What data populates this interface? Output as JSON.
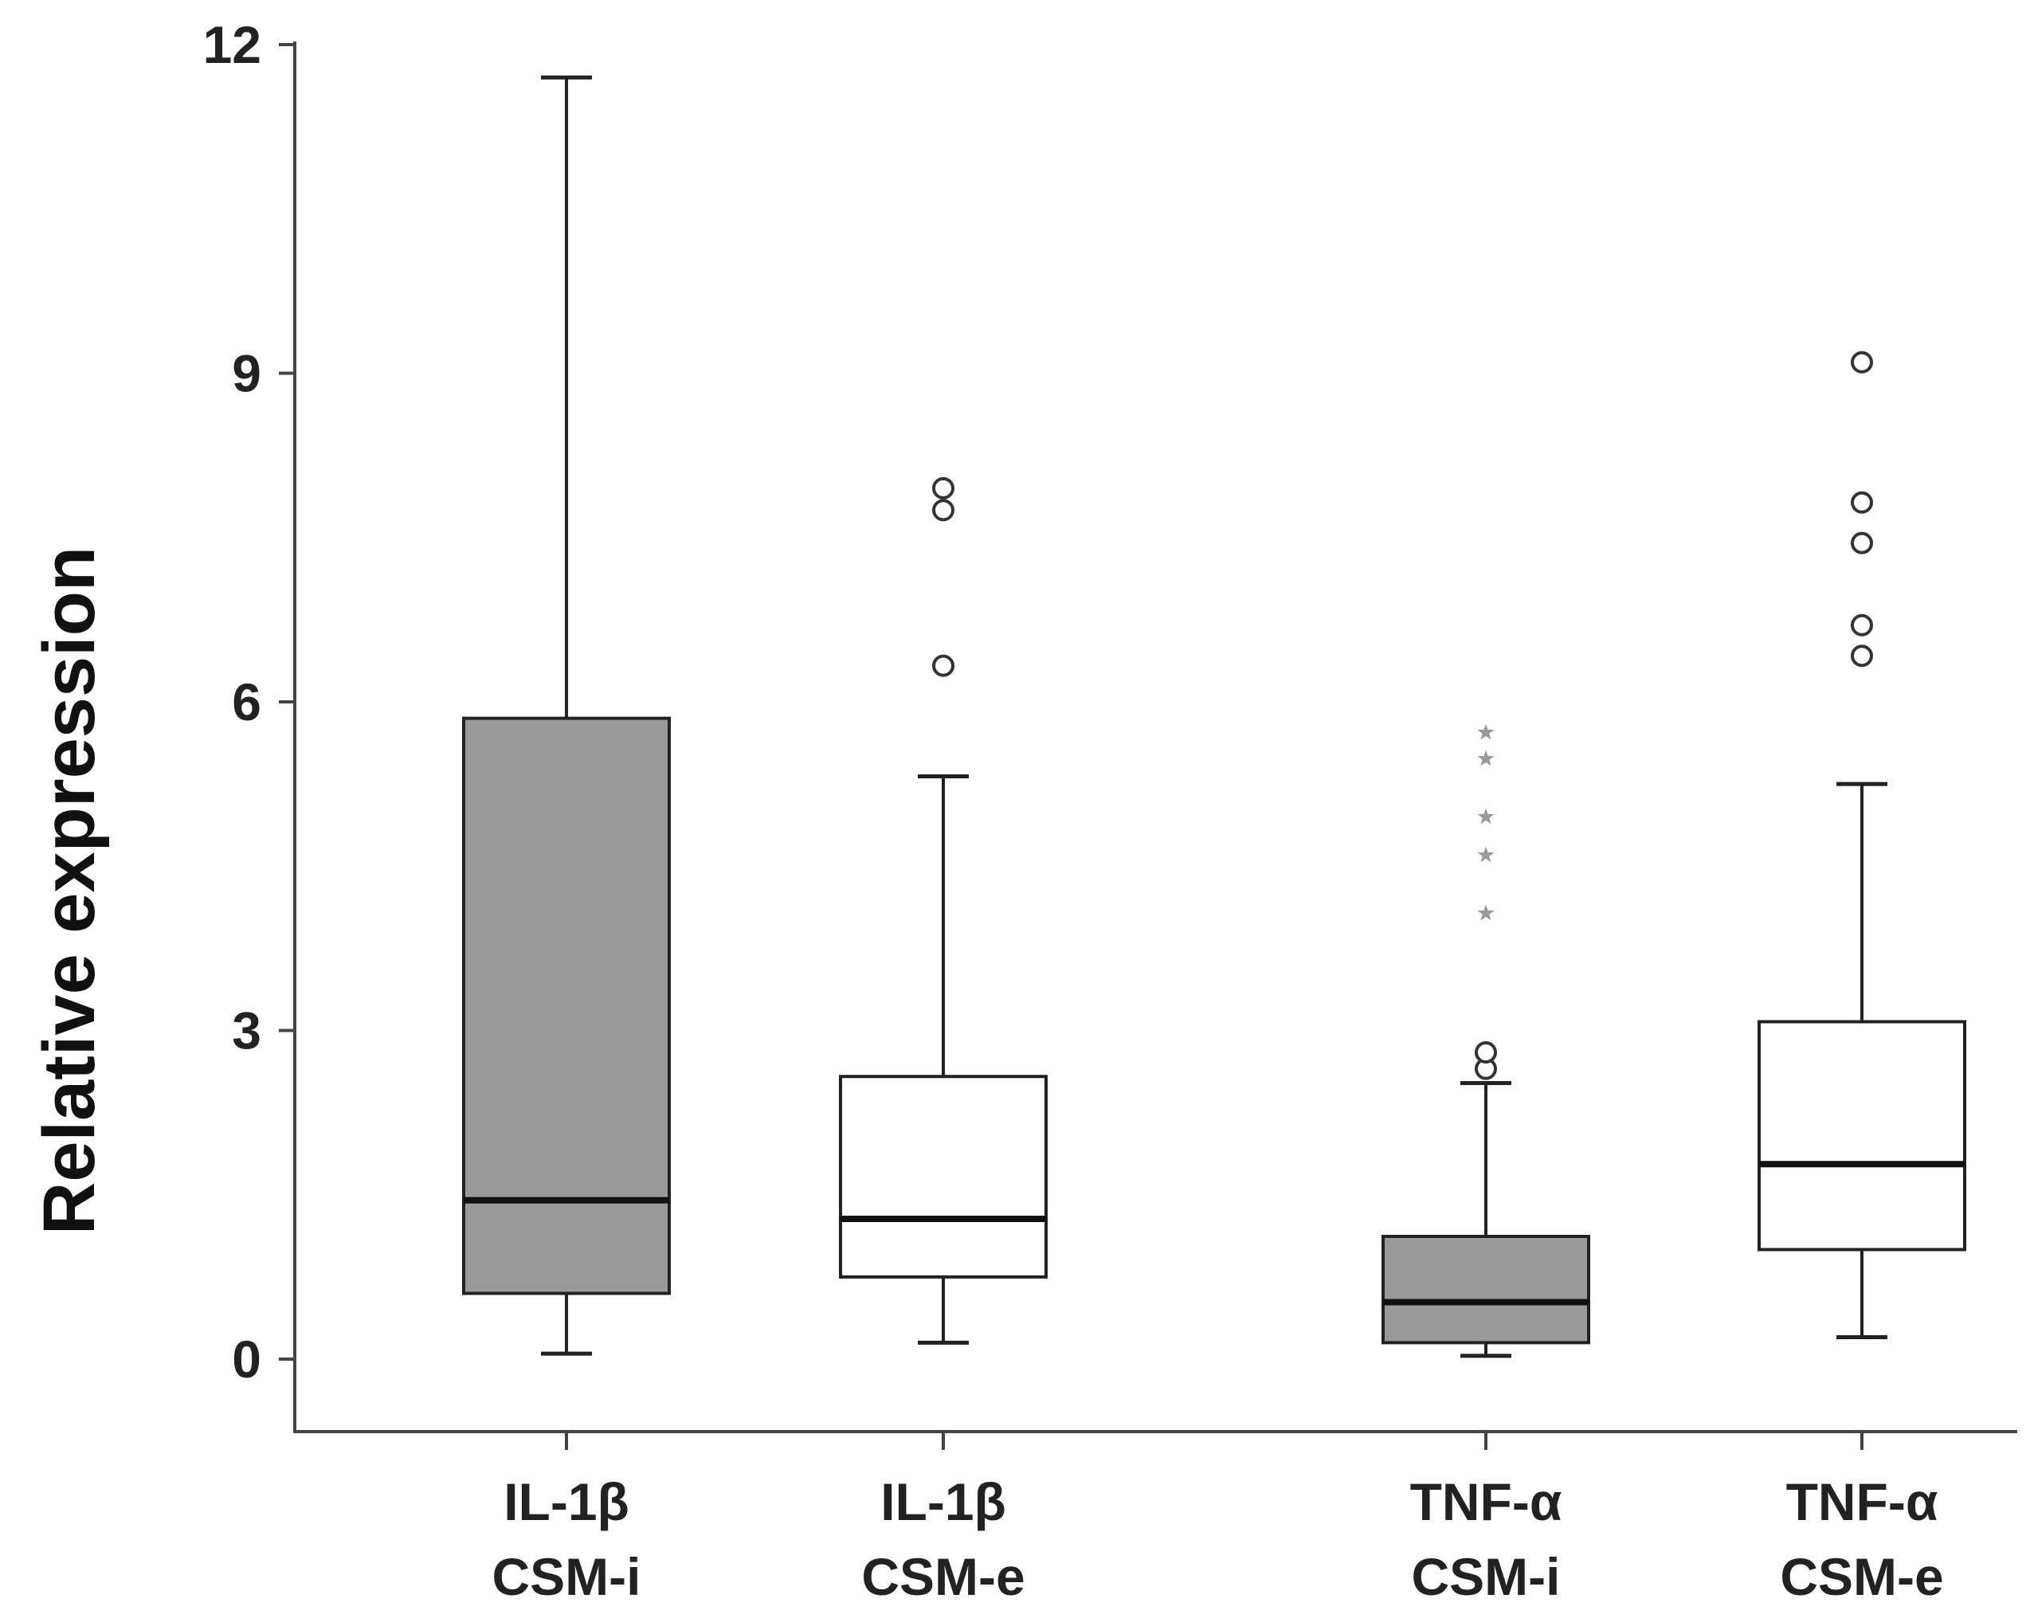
{
  "chart_data": {
    "type": "boxplot",
    "title": "",
    "ylabel": "Relative expression",
    "xlabel": "",
    "ylim": [
      -0.65,
      12.2
    ],
    "yticks": [
      0,
      3,
      6,
      9,
      12
    ],
    "grid": false,
    "colors": {
      "filled": "#999999",
      "open": "#ffffff",
      "stroke": "#222222",
      "star": "#9a9a9a"
    },
    "categories": [
      {
        "line1": "IL-1β",
        "line2": "CSM-i",
        "fill": "filled",
        "whisker_low": 0.05,
        "q1": 0.6,
        "median": 1.45,
        "q3": 5.85,
        "whisker_high": 11.7,
        "outliers": [],
        "extremes": []
      },
      {
        "line1": "IL-1β",
        "line2": "CSM-e",
        "fill": "open",
        "whisker_low": 0.15,
        "q1": 0.75,
        "median": 1.28,
        "q3": 2.58,
        "whisker_high": 5.32,
        "outliers": [
          6.33,
          7.75,
          7.95
        ],
        "extremes": []
      },
      {
        "line1": "TNF-α",
        "line2": "CSM-i",
        "fill": "filled",
        "whisker_low": 0.03,
        "q1": 0.15,
        "median": 0.52,
        "q3": 1.12,
        "whisker_high": 2.52,
        "outliers": [
          2.65,
          2.8
        ],
        "extremes": [
          4.07,
          4.6,
          4.95,
          5.48,
          5.72
        ]
      },
      {
        "line1": "TNF-α",
        "line2": "CSM-e",
        "fill": "open",
        "whisker_low": 0.2,
        "q1": 1.0,
        "median": 1.78,
        "q3": 3.08,
        "whisker_high": 5.25,
        "outliers": [
          6.42,
          6.7,
          7.45,
          7.82,
          9.1
        ],
        "extremes": []
      }
    ]
  }
}
